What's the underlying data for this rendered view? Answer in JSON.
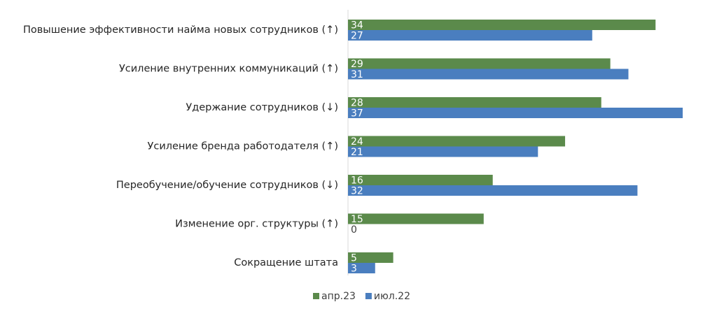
{
  "chart_data": {
    "type": "bar",
    "orientation": "horizontal",
    "categories": [
      "Повышение эффективности найма новых сотрудников (↑)",
      "Усиление внутренних коммуникаций (↑)",
      "Удержание сотрудников (↓)",
      "Усиление бренда работодателя (↑)",
      "Переобучение/обучение сотрудников (↓)",
      "Изменение орг. структуры (↑)",
      "Сокращение штата"
    ],
    "series": [
      {
        "name": "апр.23",
        "color": "#5b8a4b",
        "values": [
          34,
          29,
          28,
          24,
          16,
          15,
          5
        ]
      },
      {
        "name": "июл.22",
        "color": "#4a7ebf",
        "values": [
          27,
          31,
          37,
          21,
          32,
          0,
          3
        ]
      }
    ],
    "xlim": [
      0,
      37
    ],
    "grid": false,
    "legend_position": "bottom-center"
  }
}
